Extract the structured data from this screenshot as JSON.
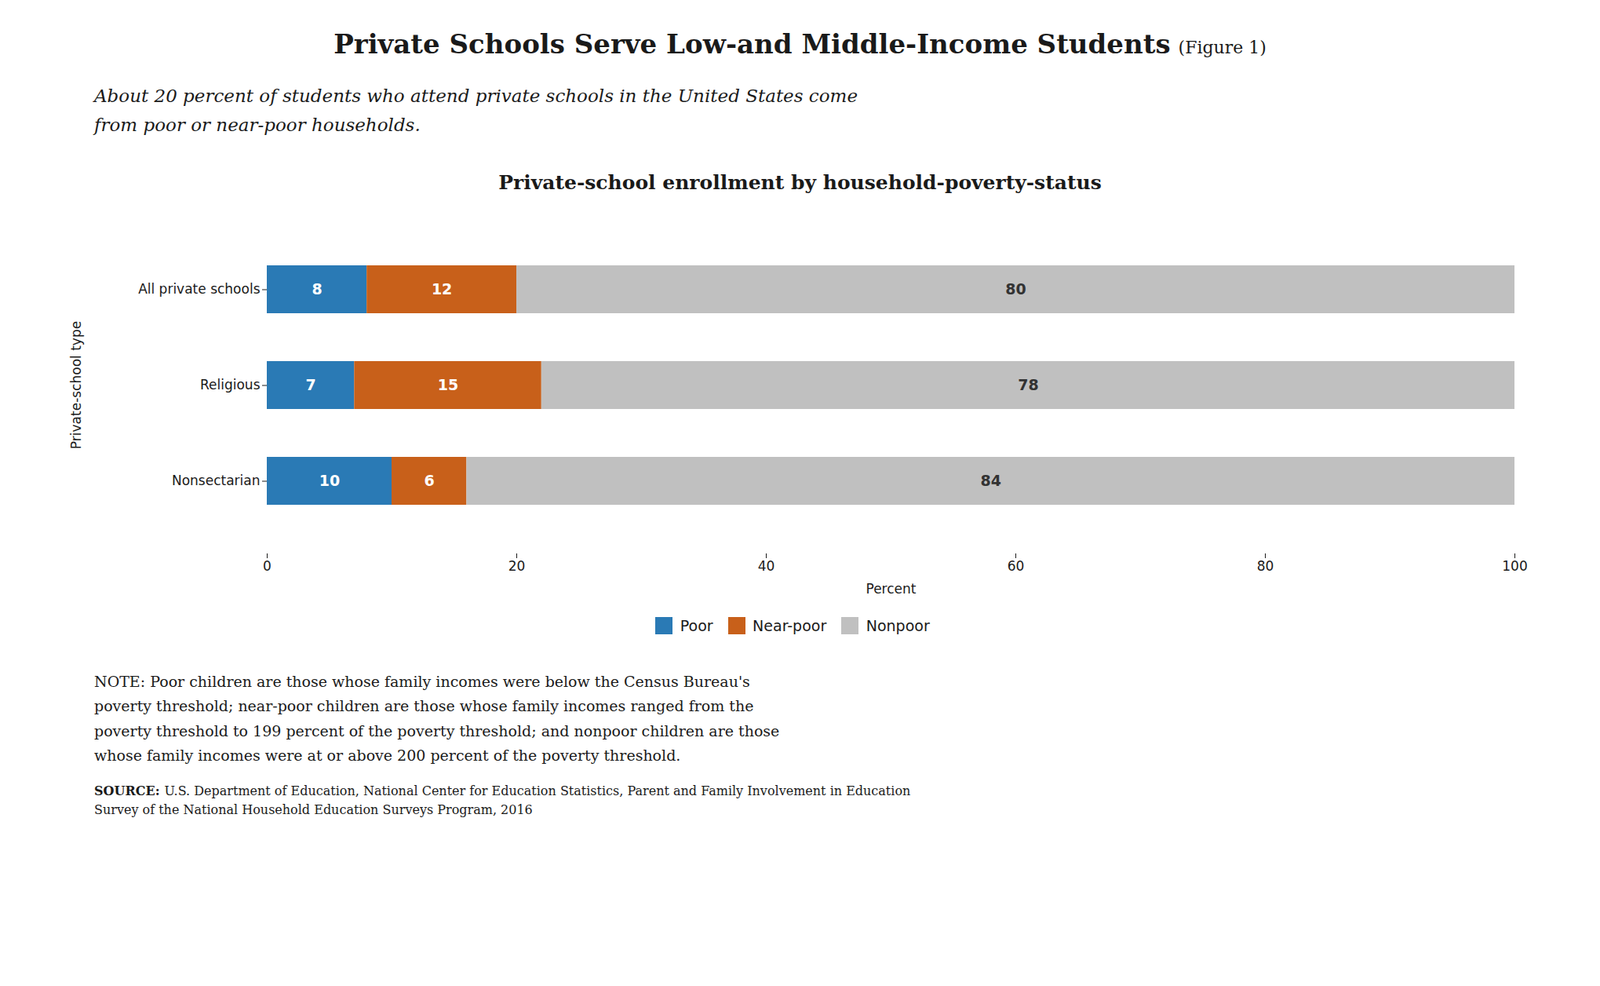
{
  "chart_data": {
    "type": "bar",
    "orientation": "horizontal",
    "stacked": true,
    "data_labels": true,
    "legend": "bottom",
    "grid": false,
    "header_title": "Private Schools Serve Low-and Middle-Income Students",
    "header_figure": "(Figure 1)",
    "subtitle": "About 20 percent of students who attend private schools in the United States come\nfrom poor or near-poor households.",
    "title": "Private-school enrollment by household-poverty-status",
    "categories": [
      "All private schools",
      "Religious",
      "Nonsectarian"
    ],
    "series": [
      {
        "name": "Poor",
        "color": "#2a7ab5",
        "values": [
          8,
          7,
          10
        ]
      },
      {
        "name": "Near-poor",
        "color": "#c8601a",
        "values": [
          12,
          15,
          6
        ]
      },
      {
        "name": "Nonpoor",
        "color": "#c0c0c0",
        "values": [
          80,
          78,
          84
        ]
      }
    ],
    "xlabel": "Percent",
    "ylabel": "Private-school type",
    "xlim": [
      0,
      100
    ],
    "xticks": [
      0,
      20,
      40,
      60,
      80,
      100
    ],
    "note": "NOTE: Poor children are those whose family incomes were below the Census Bureau's\npoverty threshold; near-poor children are those whose family incomes ranged from the\npoverty threshold to 199 percent of the poverty threshold; and nonpoor children are those\nwhose family incomes were at or above 200 percent of the poverty threshold.",
    "source_label": "SOURCE:",
    "source": "U.S. Department of Education, National Center for Education Statistics, Parent and Family Involvement in Education\nSurvey of the National Household Education Surveys Program, 2016"
  }
}
